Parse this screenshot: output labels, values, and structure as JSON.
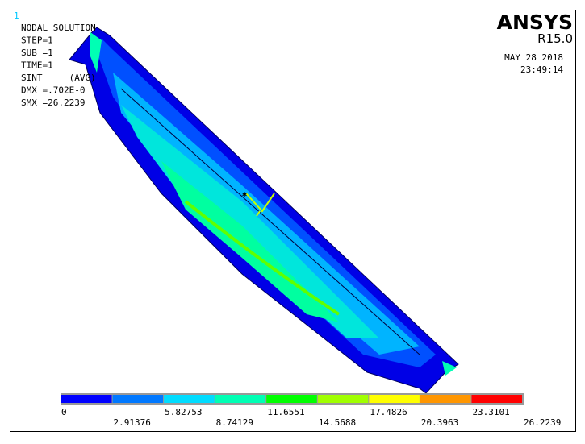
{
  "window_number": "1",
  "info": [
    "NODAL SOLUTION",
    "STEP=1",
    "SUB =1",
    "TIME=1",
    "SINT     (AVG)",
    "DMX =.702E-0",
    "SMX =26.2239"
  ],
  "brand": {
    "name": "ANSYS",
    "release": "R15.0",
    "date": "MAY 28 2018",
    "time": "23:49:14"
  },
  "legend": {
    "colors": [
      "#0000ff",
      "#0078ff",
      "#00dcff",
      "#00ffb4",
      "#00ff00",
      "#a0ff00",
      "#ffff00",
      "#ff9600",
      "#ff0000"
    ],
    "labels": [
      "0",
      "2.91376",
      "5.82753",
      "8.74129",
      "11.6551",
      "14.5688",
      "17.4826",
      "20.3963",
      "23.3101",
      "26.2239"
    ]
  }
}
